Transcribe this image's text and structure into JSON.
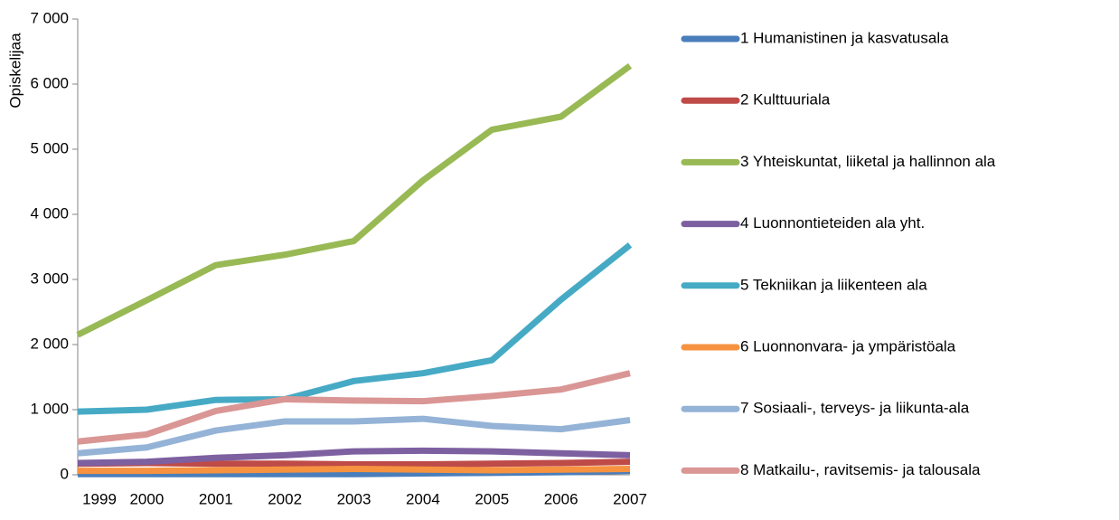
{
  "chart_data": {
    "type": "line",
    "y_label": "Opiskelijaa",
    "categories": [
      "1999",
      "2000",
      "2001",
      "2002",
      "2003",
      "2004",
      "2005",
      "2006",
      "2007"
    ],
    "ylim": [
      0,
      7000
    ],
    "yticks": [
      0,
      {
        "value": 1000,
        "label": "1 000"
      },
      {
        "value": 2000,
        "label": "2 000"
      },
      {
        "value": 3000,
        "label": "3 000"
      },
      {
        "value": 4000,
        "label": "4 000"
      },
      {
        "value": 5000,
        "label": "5 000"
      },
      {
        "value": 6000,
        "label": "6 000"
      },
      {
        "value": 7000,
        "label": "7 000"
      }
    ],
    "legend": "right",
    "series": [
      {
        "name": "1 Humanistinen ja kasvatusala",
        "color": "#4a7ebb",
        "values": [
          10,
          10,
          10,
          10,
          10,
          20,
          30,
          40,
          60
        ]
      },
      {
        "name": "2 Kulttuuriala",
        "color": "#be4b48",
        "values": [
          170,
          180,
          170,
          170,
          160,
          160,
          170,
          180,
          200
        ]
      },
      {
        "name": "3 Yhteiskuntat, liiketal ja hallinnon ala",
        "color": "#98b954",
        "values": [
          2150,
          2680,
          3220,
          3380,
          3590,
          4520,
          5300,
          5500,
          6280
        ]
      },
      {
        "name": "4 Luonnontieteiden ala yht.",
        "color": "#7d60a0",
        "values": [
          180,
          200,
          260,
          300,
          360,
          370,
          360,
          330,
          300
        ]
      },
      {
        "name": "5 Tekniikan ja liikenteen ala",
        "color": "#46aac5",
        "values": [
          970,
          1000,
          1150,
          1160,
          1440,
          1560,
          1760,
          2690,
          3530
        ]
      },
      {
        "name": "6 Luonnonvara- ja ympäristöala",
        "color": "#f69240",
        "values": [
          60,
          60,
          70,
          80,
          90,
          80,
          70,
          80,
          90
        ]
      },
      {
        "name": "7 Sosiaali-, terveys- ja liikunta-ala",
        "color": "#94b3d6",
        "values": [
          330,
          420,
          680,
          820,
          820,
          860,
          750,
          700,
          840
        ]
      },
      {
        "name": "8 Matkailu-, ravitsemis- ja talousala",
        "color": "#d99694",
        "values": [
          510,
          620,
          980,
          1160,
          1140,
          1130,
          1210,
          1310,
          1560
        ]
      }
    ]
  }
}
